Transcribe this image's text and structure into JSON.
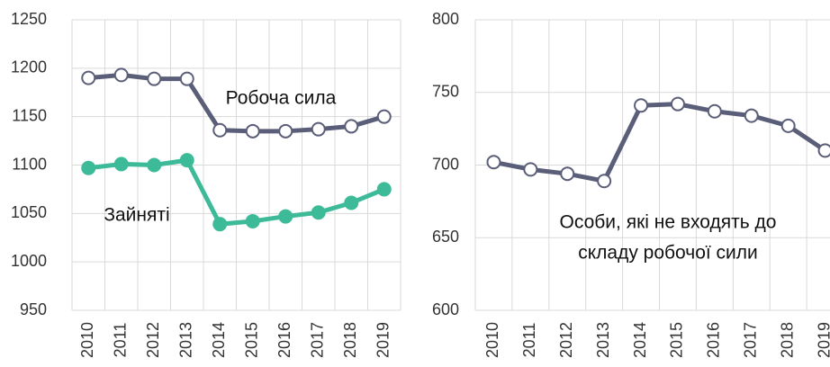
{
  "chart_data": [
    {
      "type": "line",
      "categories": [
        "2010",
        "2011",
        "2012",
        "2013",
        "2014",
        "2015",
        "2016",
        "2017",
        "2018",
        "2019"
      ],
      "ylim": [
        950,
        1250
      ],
      "yticks": [
        950,
        1000,
        1050,
        1100,
        1150,
        1200,
        1250
      ],
      "grid": true,
      "series": [
        {
          "name": "Робоча сила",
          "color": "#5b5e78",
          "marker_fill": "#ffffff",
          "values": [
            1190,
            1193,
            1189,
            1189,
            1136,
            1135,
            1135,
            1137,
            1140,
            1150
          ]
        },
        {
          "name": "Зайняті",
          "color": "#3dbb98",
          "marker_fill": "#3dbb98",
          "values": [
            1097,
            1101,
            1100,
            1105,
            1039,
            1042,
            1047,
            1051,
            1061,
            1075
          ]
        }
      ]
    },
    {
      "type": "line",
      "categories": [
        "2010",
        "2011",
        "2012",
        "2013",
        "2014",
        "2015",
        "2016",
        "2017",
        "2018",
        "2019"
      ],
      "ylim": [
        600,
        800
      ],
      "yticks": [
        600,
        650,
        700,
        750,
        800
      ],
      "grid": true,
      "annotation": [
        "Особи, які не входять до",
        "складу робочої сили"
      ],
      "series": [
        {
          "color": "#5b5e78",
          "marker_fill": "#ffffff",
          "values": [
            702,
            697,
            694,
            689,
            741,
            742,
            737,
            734,
            727,
            710
          ]
        }
      ]
    }
  ]
}
